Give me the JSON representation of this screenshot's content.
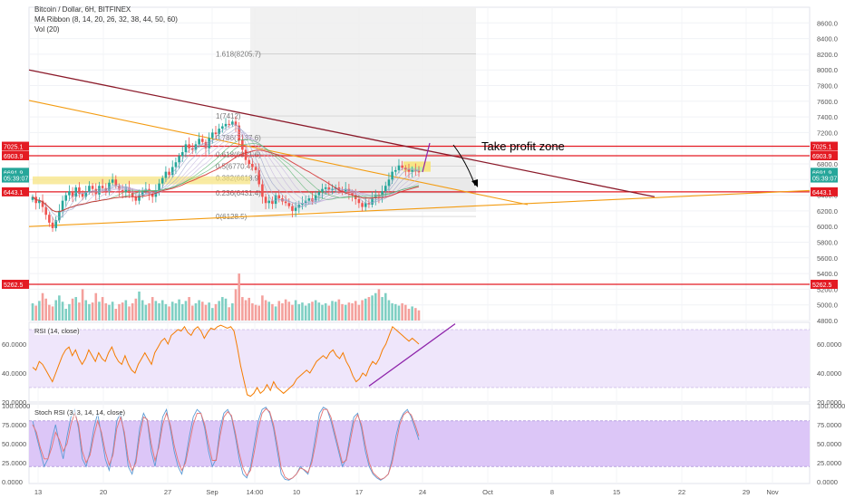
{
  "legend": {
    "symbol": "Bitcoin / Dollar, 6H, BITFINEX",
    "ma_ribbon": "MA Ribbon (8, 14, 20, 26, 32, 38, 44, 50, 60)",
    "vol": "Vol (20)"
  },
  "annotation": {
    "take_profit": "Take profit zone"
  },
  "panes": {
    "rsi_label": "RSI (14, close)",
    "stoch_label": "Stoch RSI (3, 3, 14, 14, close)"
  },
  "colors": {
    "up": "#26a69a",
    "down": "#ef5350",
    "vol_up": "#7fcfc3",
    "vol_down": "#f4a09c",
    "red_line": "#e31b23",
    "dark_red_trend": "#8b1a2a",
    "orange_trend": "#f39c12",
    "rsi_line": "#f57c00",
    "rsi_band": "#efe6fb",
    "stoch_band": "#dcc6f7",
    "stoch_k": "#5b9bd5",
    "stoch_d": "#e57373",
    "purple": "#8e24aa",
    "fib_box": "#eeeeee",
    "zone_yellow": "#f7e37a",
    "zone_green": "#b9f0a9"
  },
  "chart_data": [
    {
      "type": "candlestick",
      "title": "Bitcoin / Dollar, 6H, BITFINEX",
      "ylim": [
        4800,
        8800
      ],
      "y_ticks": [
        4800,
        5000,
        5200,
        5400,
        5600,
        5800,
        6000,
        6200,
        6400,
        6600,
        6800,
        7000,
        7200,
        7400,
        7600,
        7800,
        8000,
        8200,
        8400,
        8600
      ],
      "x_labels": [
        "13",
        "20",
        "27",
        "Sep",
        "14:00",
        "10",
        "17",
        "24",
        "Oct",
        "8",
        "15",
        "22",
        "29",
        "Nov"
      ],
      "price_tags": [
        {
          "value": "7025.1",
          "color": "#e31b23"
        },
        {
          "value": "6903.9",
          "color": "#e31b23"
        },
        {
          "value": "6691.9",
          "color": "#26a69a"
        },
        {
          "value": "05:39:07",
          "color": "#26a69a"
        },
        {
          "value": "6443.1",
          "color": "#e31b23"
        },
        {
          "value": "5262.5",
          "color": "#e31b23"
        }
      ],
      "horizontal_levels": [
        7025.1,
        6903.9,
        6443.1,
        5262.5
      ],
      "fib_levels": [
        {
          "ratio": "1.618",
          "value": "8205.7"
        },
        {
          "ratio": "1",
          "value": "7412"
        },
        {
          "ratio": "0.786",
          "value": "7137.6"
        },
        {
          "ratio": "0.618",
          "value": "6921.6"
        },
        {
          "ratio": "0.5",
          "value": "6770.4"
        },
        {
          "ratio": "0.382",
          "value": "6618.9"
        },
        {
          "ratio": "0.236",
          "value": "6431.4"
        },
        {
          "ratio": "0",
          "value": "6128.5"
        }
      ],
      "closes": [
        6380,
        6300,
        6330,
        6250,
        6150,
        6050,
        5980,
        6080,
        6200,
        6330,
        6400,
        6450,
        6380,
        6500,
        6420,
        6380,
        6440,
        6520,
        6480,
        6410,
        6520,
        6490,
        6450,
        6560,
        6600,
        6520,
        6470,
        6440,
        6500,
        6430,
        6380,
        6330,
        6400,
        6450,
        6480,
        6420,
        6380,
        6460,
        6550,
        6620,
        6700,
        6660,
        6760,
        6820,
        6900,
        6950,
        7050,
        7000,
        6980,
        7050,
        7120,
        7080,
        7000,
        7130,
        7200,
        7180,
        7250,
        7280,
        7310,
        7300,
        7340,
        7290,
        7100,
        6980,
        6850,
        6800,
        6760,
        6720,
        6540,
        6380,
        6300,
        6330,
        6290,
        6400,
        6360,
        6320,
        6300,
        6260,
        6200,
        6240,
        6280,
        6300,
        6330,
        6360,
        6320,
        6400,
        6440,
        6480,
        6500,
        6470,
        6480,
        6500,
        6460,
        6440,
        6480,
        6430,
        6400,
        6350,
        6300,
        6250,
        6300,
        6280,
        6360,
        6410,
        6380,
        6450,
        6520,
        6600,
        6700,
        6720,
        6780,
        6750,
        6730,
        6700,
        6720,
        6710,
        6692
      ],
      "volumes": [
        5020,
        4990,
        5050,
        5150,
        5080,
        5000,
        4980,
        5060,
        5120,
        5040,
        4950,
        5010,
        5080,
        5100,
        5030,
        5200,
        5060,
        5010,
        5030,
        5150,
        5040,
        5100,
        5020,
        5000,
        5040,
        4950,
        5010,
        5030,
        5060,
        4980,
        5020,
        5080,
        5170,
        5060,
        5000,
        5020,
        5100,
        5050,
        5020,
        5060,
        5010,
        4980,
        5040,
        5020,
        5070,
        5010,
        5050,
        5100,
        4990,
        5020,
        5060,
        5040,
        5000,
        5030,
        4960,
        5010,
        5050,
        5100,
        5080,
        4970,
        5020,
        5200,
        5400,
        5100,
        5060,
        5090,
        5020,
        5000,
        4990,
        5120,
        5060,
        5040,
        5010,
        4980,
        5050,
        5020,
        5070,
        5040,
        5000,
        5060,
        5010,
        5030,
        4990,
        5020,
        5040,
        5060,
        5030,
        5000,
        5020,
        4990,
        5050,
        5040,
        5070,
        5010,
        5000,
        5030,
        5020,
        5050,
        5000,
        5060,
        5080,
        5100,
        5120,
        5150,
        5200,
        5100,
        5150,
        5060,
        5020,
        5010,
        4990,
        5020,
        5000,
        4950,
        4980,
        4960,
        4930
      ]
    },
    {
      "type": "line",
      "title": "RSI (14, close)",
      "ylim": [
        20,
        75
      ],
      "y_ticks": [
        20,
        40,
        60
      ],
      "band": [
        30,
        70
      ],
      "values": [
        44,
        42,
        48,
        46,
        42,
        38,
        34,
        40,
        46,
        52,
        56,
        58,
        52,
        56,
        50,
        46,
        50,
        56,
        52,
        48,
        54,
        50,
        48,
        54,
        58,
        52,
        48,
        46,
        52,
        46,
        42,
        40,
        46,
        50,
        54,
        50,
        46,
        54,
        58,
        62,
        64,
        60,
        66,
        68,
        70,
        69,
        72,
        68,
        66,
        70,
        72,
        69,
        64,
        68,
        71,
        70,
        72,
        73,
        72,
        71,
        72,
        69,
        58,
        45,
        35,
        25,
        24,
        26,
        30,
        26,
        28,
        32,
        28,
        34,
        30,
        28,
        26,
        28,
        30,
        32,
        36,
        38,
        40,
        42,
        40,
        44,
        48,
        50,
        52,
        50,
        54,
        56,
        52,
        50,
        54,
        48,
        44,
        38,
        34,
        36,
        40,
        38,
        44,
        48,
        46,
        50,
        56,
        60,
        66,
        72,
        70,
        68,
        66,
        64,
        62,
        64,
        62,
        60
      ],
      "x_labels": [
        "13",
        "20",
        "27",
        "Sep",
        "14:00",
        "10",
        "17",
        "24"
      ]
    },
    {
      "type": "line",
      "title": "Stoch RSI (3, 3, 14, 14, close)",
      "ylim": [
        0,
        100
      ],
      "y_ticks": [
        0,
        25,
        50,
        75,
        100
      ],
      "band": [
        20,
        80
      ],
      "series": [
        {
          "name": "%K",
          "values": [
            80,
            60,
            40,
            20,
            30,
            55,
            75,
            50,
            30,
            60,
            85,
            95,
            70,
            30,
            20,
            40,
            70,
            90,
            60,
            30,
            15,
            40,
            80,
            90,
            60,
            20,
            10,
            30,
            70,
            90,
            80,
            40,
            20,
            50,
            85,
            95,
            70,
            40,
            20,
            10,
            30,
            60,
            85,
            95,
            90,
            70,
            40,
            20,
            30,
            70,
            90,
            95,
            85,
            60,
            30,
            10,
            5,
            20,
            50,
            80,
            95,
            98,
            90,
            70,
            40,
            10,
            3,
            2,
            5,
            10,
            20,
            15,
            10,
            30,
            60,
            90,
            98,
            95,
            80,
            60,
            40,
            20,
            30,
            60,
            85,
            90,
            70,
            40,
            20,
            10,
            5,
            2,
            5,
            10,
            30,
            60,
            80,
            90,
            95,
            85,
            70,
            55
          ]
        },
        {
          "name": "%D",
          "values": [
            75,
            65,
            45,
            30,
            30,
            45,
            65,
            55,
            40,
            50,
            75,
            90,
            75,
            40,
            25,
            35,
            60,
            80,
            65,
            40,
            22,
            35,
            70,
            85,
            65,
            30,
            15,
            25,
            60,
            85,
            82,
            50,
            28,
            45,
            75,
            90,
            75,
            48,
            28,
            15,
            25,
            50,
            75,
            90,
            90,
            75,
            50,
            28,
            28,
            60,
            85,
            92,
            87,
            65,
            38,
            18,
            8,
            15,
            40,
            70,
            90,
            96,
            92,
            75,
            48,
            18,
            6,
            3,
            5,
            10,
            18,
            16,
            12,
            25,
            50,
            80,
            95,
            95,
            85,
            65,
            45,
            25,
            28,
            52,
            78,
            88,
            75,
            48,
            25,
            12,
            7,
            3,
            5,
            10,
            25,
            50,
            75,
            88,
            92,
            88,
            75,
            60
          ]
        }
      ]
    }
  ]
}
